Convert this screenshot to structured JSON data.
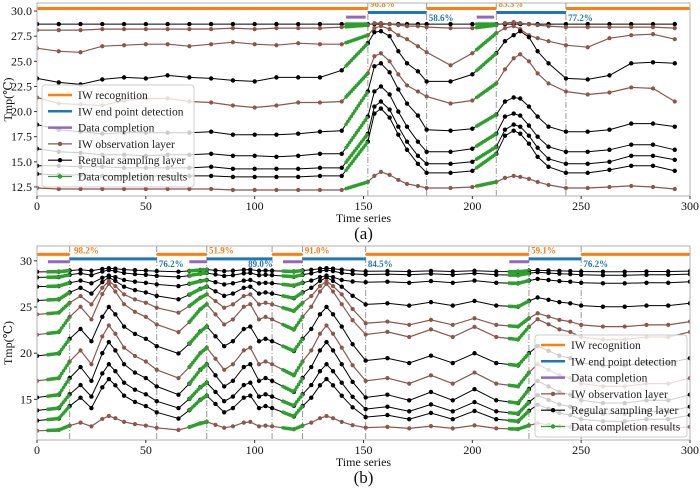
{
  "colors": {
    "orange": "#ff7f0e",
    "blue": "#1f77b4",
    "purple": "#9467bd",
    "brown": "#8c564b",
    "black": "#000000",
    "green": "#2ca02c",
    "grid": "#999999"
  },
  "legend_labels": [
    "IW recognition",
    "IW end point detection",
    "Data completion",
    "IW observation layer",
    "Regular sampling layer",
    "Data completion results"
  ],
  "chart_data": [
    {
      "type": "line",
      "panel_label": "(a)",
      "xlabel": "Time series",
      "ylabel": "Tmp(℃)",
      "xlim": [
        0,
        300
      ],
      "ylim": [
        11.6,
        30.8
      ],
      "xticks": [
        0,
        50,
        100,
        150,
        200,
        250,
        300
      ],
      "yticks": [
        12.5,
        15.0,
        17.5,
        20.0,
        22.5,
        25.0,
        27.5,
        30.0
      ],
      "ytick_labels": [
        "12.5",
        "15.0",
        "17.5",
        "20.0",
        "22.5",
        "25.0",
        "27.5",
        "30.0"
      ],
      "legend_position": "center-left",
      "annotation_bars": {
        "recognition": {
          "y": 30.25,
          "segments": [
            [
              0,
              152
            ],
            [
              179,
              211
            ],
            [
              243,
              300
            ]
          ]
        },
        "endpoint": {
          "y": 29.85,
          "segments": [
            [
              152,
              179
            ],
            [
              211,
              243
            ]
          ]
        },
        "completion": {
          "y": 29.4,
          "segments": [
            [
              142,
              151
            ],
            [
              202,
              210
            ]
          ]
        }
      },
      "boundaries": [
        152,
        179,
        211,
        243
      ],
      "percent_labels": [
        {
          "x": 153,
          "y": 30.4,
          "text": "96.8%",
          "color": "orange"
        },
        {
          "x": 180,
          "y": 29.0,
          "text": "58.6%",
          "color": "blue"
        },
        {
          "x": 212,
          "y": 30.4,
          "text": "85.3%",
          "color": "orange"
        },
        {
          "x": 244,
          "y": 29.0,
          "text": "77.2%",
          "color": "blue"
        }
      ],
      "completion_windows": [
        [
          142,
          152
        ],
        [
          202,
          211
        ]
      ],
      "x": [
        0,
        10,
        20,
        30,
        40,
        50,
        60,
        70,
        80,
        90,
        100,
        110,
        120,
        130,
        140,
        152,
        155,
        158,
        162,
        166,
        170,
        175,
        179,
        190,
        200,
        211,
        215,
        219,
        222,
        226,
        230,
        235,
        243,
        253,
        263,
        273,
        283,
        293
      ],
      "series": [
        {
          "name": "Regular sampling layer",
          "kind": "regular",
          "values": [
            28.7,
            28.7,
            28.7,
            28.7,
            28.7,
            28.7,
            28.7,
            28.7,
            28.7,
            28.7,
            28.7,
            28.7,
            28.7,
            28.7,
            28.7,
            28.7,
            28.7,
            28.7,
            28.7,
            28.7,
            28.7,
            28.7,
            28.7,
            28.7,
            28.7,
            28.7,
            28.7,
            28.7,
            28.7,
            28.7,
            28.7,
            28.7,
            28.7,
            28.7,
            28.7,
            28.7,
            28.7,
            28.7
          ]
        },
        {
          "name": "IW observation layer",
          "kind": "observation",
          "values": [
            28.1,
            28.1,
            28.1,
            28.2,
            28.2,
            28.2,
            28.2,
            28.2,
            28.2,
            28.3,
            28.2,
            28.3,
            28.3,
            28.3,
            28.4,
            28.6,
            28.8,
            28.8,
            28.7,
            28.6,
            28.5,
            28.5,
            28.4,
            28.3,
            28.3,
            28.6,
            28.8,
            28.9,
            28.8,
            28.7,
            28.6,
            28.5,
            28.4,
            28.4,
            28.4,
            28.4,
            28.4,
            28.3
          ]
        },
        {
          "name": "IW observation layer",
          "kind": "observation",
          "values": [
            26.3,
            26.0,
            25.9,
            26.5,
            26.6,
            26.7,
            26.7,
            26.5,
            26.7,
            26.9,
            26.7,
            26.6,
            26.8,
            26.7,
            26.7,
            27.6,
            28.3,
            28.5,
            28.2,
            27.6,
            27.2,
            26.5,
            25.9,
            24.6,
            25.8,
            27.8,
            28.3,
            28.5,
            28.2,
            27.6,
            27.3,
            27.0,
            26.6,
            26.4,
            27.3,
            27.6,
            27.7,
            27.2
          ]
        },
        {
          "name": "Regular sampling layer",
          "kind": "regular",
          "values": [
            23.3,
            22.9,
            22.7,
            23.2,
            23.4,
            23.3,
            23.6,
            23.4,
            23.3,
            23.1,
            23.0,
            23.4,
            23.4,
            23.4,
            24.1,
            26.8,
            27.9,
            28.0,
            27.5,
            26.0,
            24.8,
            24.0,
            23.0,
            23.0,
            23.7,
            25.8,
            27.0,
            27.6,
            28.0,
            27.4,
            26.0,
            24.8,
            23.3,
            23.2,
            23.6,
            24.8,
            24.9,
            24.8
          ]
        },
        {
          "name": "IW observation layer",
          "kind": "observation",
          "values": [
            21.4,
            20.8,
            20.7,
            20.6,
            21.1,
            21.3,
            21.3,
            21.0,
            20.9,
            20.6,
            20.4,
            20.6,
            20.9,
            20.9,
            21.0,
            23.8,
            25.5,
            25.8,
            25.0,
            23.7,
            22.6,
            22.0,
            21.5,
            20.8,
            21.1,
            22.8,
            24.2,
            25.3,
            25.7,
            25.0,
            23.8,
            22.8,
            22.0,
            21.7,
            21.9,
            22.4,
            22.3,
            21.0
          ]
        },
        {
          "name": "Regular sampling layer",
          "kind": "regular",
          "values": [
            18.7,
            18.2,
            18.0,
            17.8,
            17.9,
            17.9,
            17.9,
            17.9,
            18.0,
            17.7,
            17.7,
            17.7,
            17.8,
            18.0,
            18.1,
            22.0,
            24.5,
            24.8,
            23.9,
            22.2,
            20.8,
            19.6,
            18.2,
            18.1,
            18.3,
            19.7,
            21.0,
            21.4,
            21.3,
            20.5,
            19.5,
            18.5,
            18.0,
            18.0,
            18.2,
            18.8,
            18.8,
            18.5
          ]
        },
        {
          "name": "Regular sampling layer",
          "kind": "regular",
          "values": [
            16.3,
            16.0,
            15.9,
            15.7,
            15.7,
            15.6,
            15.7,
            15.7,
            15.8,
            15.6,
            15.6,
            15.5,
            15.6,
            15.8,
            15.8,
            19.5,
            22.0,
            22.5,
            21.7,
            20.0,
            18.5,
            17.0,
            16.0,
            16.0,
            16.3,
            17.8,
            19.5,
            19.8,
            19.6,
            18.6,
            17.5,
            16.5,
            16.0,
            16.0,
            16.2,
            16.7,
            16.7,
            16.2
          ]
        },
        {
          "name": "Regular sampling layer",
          "kind": "regular",
          "values": [
            14.6,
            14.6,
            14.5,
            14.5,
            14.4,
            14.4,
            14.4,
            14.4,
            14.5,
            14.3,
            14.3,
            14.3,
            14.3,
            14.4,
            14.4,
            17.8,
            20.5,
            21.0,
            20.2,
            18.5,
            17.0,
            15.6,
            14.8,
            14.8,
            15.0,
            16.5,
            18.2,
            18.7,
            18.5,
            17.6,
            16.4,
            15.3,
            14.8,
            14.8,
            15.0,
            15.6,
            15.6,
            15.2
          ]
        },
        {
          "name": "Regular sampling layer",
          "kind": "regular",
          "values": [
            13.8,
            13.7,
            13.7,
            13.6,
            13.6,
            13.6,
            13.6,
            13.6,
            13.6,
            13.5,
            13.5,
            13.5,
            13.5,
            13.6,
            13.6,
            17.0,
            19.8,
            20.3,
            19.4,
            17.7,
            16.2,
            14.8,
            13.9,
            13.9,
            14.1,
            15.8,
            17.6,
            18.1,
            17.8,
            16.8,
            15.5,
            14.5,
            13.9,
            13.9,
            14.2,
            14.6,
            14.6,
            14.1
          ]
        },
        {
          "name": "IW observation layer",
          "kind": "observation",
          "values": [
            12.4,
            12.3,
            12.3,
            12.3,
            12.3,
            12.3,
            12.3,
            12.3,
            12.3,
            12.2,
            12.2,
            12.2,
            12.2,
            12.2,
            12.2,
            13.0,
            13.6,
            14.0,
            13.7,
            13.2,
            12.8,
            12.6,
            12.4,
            12.4,
            12.5,
            13.0,
            13.4,
            13.6,
            13.5,
            13.3,
            13.0,
            12.7,
            12.4,
            12.4,
            12.5,
            12.6,
            12.5,
            12.3
          ]
        }
      ]
    },
    {
      "type": "line",
      "panel_label": "(b)",
      "xlabel": "Time series",
      "ylabel": "Tmp(℃)",
      "xlim": [
        0,
        300
      ],
      "ylim": [
        10.6,
        31.6
      ],
      "xticks": [
        0,
        50,
        100,
        150,
        200,
        250,
        300
      ],
      "yticks": [
        15,
        20,
        25,
        30
      ],
      "ytick_labels": [
        "15",
        "20",
        "25",
        "30"
      ],
      "legend_position": "lower-right",
      "annotation_bars": {
        "recognition": {
          "y": 30.7,
          "segments": [
            [
              0,
              15
            ],
            [
              55,
              78
            ],
            [
              108,
              122
            ],
            [
              151,
              226
            ],
            [
              250,
              300
            ]
          ]
        },
        "endpoint": {
          "y": 30.2,
          "segments": [
            [
              15,
              55
            ],
            [
              78,
              108
            ],
            [
              122,
              151
            ],
            [
              226,
              250
            ]
          ]
        },
        "completion": {
          "y": 29.9,
          "segments": [
            [
              5,
              15
            ],
            [
              70,
              78
            ],
            [
              113,
              122
            ],
            [
              217,
              226
            ]
          ]
        }
      },
      "boundaries": [
        15,
        55,
        78,
        108,
        122,
        151,
        226,
        250
      ],
      "percent_labels": [
        {
          "x": 17,
          "y": 30.8,
          "text": "98.2%",
          "color": "orange"
        },
        {
          "x": 56,
          "y": 29.3,
          "text": "76.2%",
          "color": "blue"
        },
        {
          "x": 79,
          "y": 30.8,
          "text": "51.9%",
          "color": "orange"
        },
        {
          "x": 97,
          "y": 29.3,
          "text": "89.0%",
          "color": "blue"
        },
        {
          "x": 123,
          "y": 30.8,
          "text": "91.0%",
          "color": "orange"
        },
        {
          "x": 152,
          "y": 29.3,
          "text": "84.5%",
          "color": "blue"
        },
        {
          "x": 227,
          "y": 30.8,
          "text": "59.1%",
          "color": "orange"
        },
        {
          "x": 251,
          "y": 29.3,
          "text": "76.2%",
          "color": "blue"
        }
      ],
      "completion_windows": [
        [
          5,
          15
        ],
        [
          70,
          78
        ],
        [
          113,
          122
        ],
        [
          217,
          226
        ]
      ],
      "x": [
        0,
        10,
        15,
        20,
        25,
        30,
        33,
        36,
        40,
        45,
        50,
        55,
        65,
        70,
        75,
        78,
        82,
        86,
        90,
        95,
        98,
        102,
        105,
        108,
        118,
        122,
        126,
        130,
        133,
        136,
        140,
        145,
        151,
        161,
        171,
        181,
        191,
        201,
        211,
        221,
        226,
        230,
        235,
        240,
        245,
        250,
        260,
        270,
        280,
        290,
        300
      ],
      "profile": [
        0,
        0.05,
        0.35,
        0.55,
        0.3,
        0.8,
        1.0,
        0.85,
        0.6,
        0.45,
        0.35,
        0.2,
        0.05,
        0.25,
        0.5,
        0.6,
        0.4,
        0.2,
        0.3,
        0.55,
        0.6,
        0.3,
        0.35,
        0.3,
        0.1,
        0.35,
        0.55,
        0.85,
        1.0,
        0.85,
        0.6,
        0.35,
        0.15,
        0.2,
        0.1,
        0.25,
        0.1,
        0.3,
        0.1,
        0.05,
        0.3,
        0.45,
        0.35,
        0.25,
        0.2,
        0.1,
        0.05,
        0.05,
        0.1,
        0.1,
        0.2
      ],
      "series": [
        {
          "name": "Regular sampling layer",
          "kind": "regular",
          "base": 28.8,
          "amp": 0.4,
          "drift": 0.0
        },
        {
          "name": "Regular sampling layer",
          "kind": "regular",
          "base": 28.2,
          "amp": 0.8,
          "drift": 0.2
        },
        {
          "name": "Regular sampling layer",
          "kind": "regular",
          "base": 27.2,
          "amp": 1.2,
          "drift": 0.3
        },
        {
          "name": "Regular sampling layer",
          "kind": "regular",
          "base": 25.7,
          "amp": 2.5,
          "drift": -0.8
        },
        {
          "name": "IW observation layer",
          "kind": "observation",
          "base": 24.2,
          "amp": 3.6,
          "drift": -1.5
        },
        {
          "name": "IW observation layer",
          "kind": "observation",
          "base": 22.0,
          "amp": 5.5,
          "drift": -0.8
        },
        {
          "name": "Regular sampling layer",
          "kind": "regular",
          "base": 19.7,
          "amp": 5.3,
          "drift": -1.3
        },
        {
          "name": "IW observation layer",
          "kind": "observation",
          "base": 17.0,
          "amp": 6.0,
          "drift": -0.9
        },
        {
          "name": "Regular sampling layer",
          "kind": "regular",
          "base": 15.2,
          "amp": 6.0,
          "drift": -0.9
        },
        {
          "name": "Regular sampling layer",
          "kind": "regular",
          "base": 13.8,
          "amp": 5.0,
          "drift": -0.6
        },
        {
          "name": "Regular sampling layer",
          "kind": "regular",
          "base": 12.7,
          "amp": 4.5,
          "drift": -0.3
        },
        {
          "name": "IW observation layer",
          "kind": "observation",
          "base": 11.6,
          "amp": 1.6,
          "drift": 0.1
        }
      ]
    }
  ]
}
